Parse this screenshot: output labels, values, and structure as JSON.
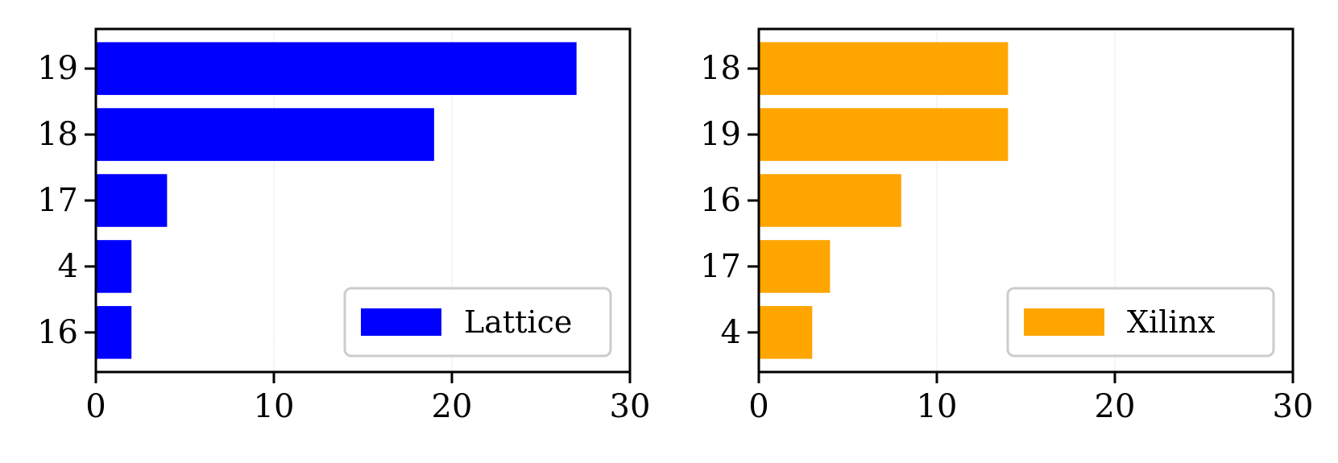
{
  "chart_data": [
    {
      "type": "bar",
      "orientation": "horizontal",
      "categories": [
        "19",
        "18",
        "17",
        "4",
        "16"
      ],
      "series": [
        {
          "name": "Lattice",
          "values": [
            27,
            19,
            4,
            2,
            2
          ],
          "color": "#0000ff"
        }
      ],
      "xlim": [
        0,
        30
      ],
      "xticks": [
        "0",
        "10",
        "20",
        "30"
      ],
      "grid": "x",
      "legend": "lower-right"
    },
    {
      "type": "bar",
      "orientation": "horizontal",
      "categories": [
        "18",
        "19",
        "16",
        "17",
        "4"
      ],
      "series": [
        {
          "name": "Xilinx",
          "values": [
            14,
            14,
            8,
            4,
            3
          ],
          "color": "#ffa500"
        }
      ],
      "xlim": [
        0,
        30
      ],
      "xticks": [
        "0",
        "10",
        "20",
        "30"
      ],
      "grid": "x",
      "legend": "lower-right"
    }
  ]
}
